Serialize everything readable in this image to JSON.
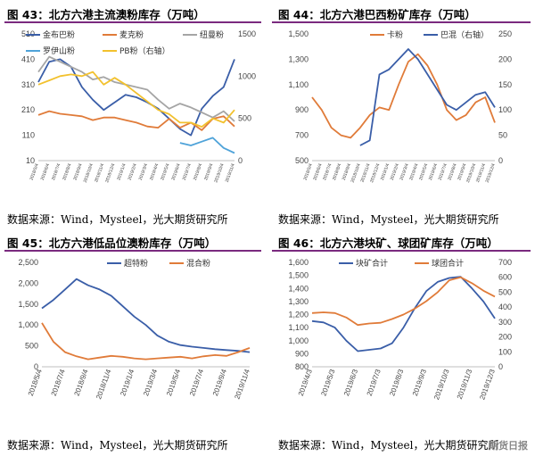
{
  "panels": [
    {
      "title": "图 43：北方六港主流澳粉库存（万吨）",
      "source": "数据来源：Wind，Mysteel，光大期货研究所"
    },
    {
      "title": "图 44：北方六港巴西粉矿库存（万吨）",
      "source": "数据来源：Wind，Mysteel，光大期货研究所"
    },
    {
      "title": "图 45：北方六港低品位澳粉库存（万吨）",
      "source": "数据来源：Wind，Mysteel，光大期货研究所"
    },
    {
      "title": "图 46：北方六港块矿、球团矿库存（万吨）",
      "source": "数据来源：Wind，Mysteel，光大期货研究所"
    }
  ],
  "watermark": "期货日报",
  "chart_data": [
    {
      "type": "line",
      "title": "北方六港主流澳粉库存（万吨）",
      "ylim": [
        10,
        510
      ],
      "yticks": [
        10,
        110,
        210,
        310,
        410,
        510
      ],
      "y2lim": [
        0,
        1500
      ],
      "y2ticks": [
        0,
        500,
        1000,
        1500
      ],
      "xticks": [
        "2018/5/4",
        "2018/6/4",
        "2018/7/4",
        "2018/8/4",
        "2018/9/4",
        "2018/10/4",
        "2018/11/4",
        "2018/12/4",
        "2019/1/4",
        "2019/2/4",
        "2019/3/4",
        "2019/4/4",
        "2019/5/4",
        "2019/6/4",
        "2019/7/4",
        "2019/8/4",
        "2019/9/4",
        "2019/10/4",
        "2019/11/4"
      ],
      "n": 19,
      "series": [
        {
          "name": "金布巴粉",
          "color": "#3a5ea8",
          "axis": "left",
          "values": [
            320,
            400,
            410,
            380,
            300,
            250,
            210,
            240,
            270,
            260,
            240,
            215,
            175,
            135,
            110,
            215,
            265,
            300,
            410
          ]
        },
        {
          "name": "麦克粉",
          "color": "#e07b39",
          "axis": "left",
          "values": [
            190,
            205,
            195,
            190,
            185,
            170,
            180,
            180,
            170,
            160,
            145,
            140,
            175,
            140,
            160,
            130,
            175,
            185,
            145
          ]
        },
        {
          "name": "纽曼粉",
          "color": "#a5a5a5",
          "axis": "left",
          "values": [
            360,
            420,
            400,
            380,
            360,
            330,
            340,
            320,
            310,
            300,
            290,
            250,
            215,
            235,
            220,
            200,
            180,
            205,
            165
          ]
        },
        {
          "name": "罗伊山粉",
          "color": "#4fa3d9",
          "axis": "left",
          "values": [
            null,
            null,
            null,
            null,
            null,
            null,
            null,
            null,
            null,
            null,
            null,
            null,
            null,
            80,
            70,
            85,
            100,
            60,
            40
          ]
        },
        {
          "name": "PB粉（右轴）",
          "color": "#f2c12e",
          "axis": "right",
          "values": [
            900,
            950,
            1000,
            1020,
            1000,
            1050,
            900,
            980,
            900,
            800,
            700,
            600,
            550,
            450,
            450,
            400,
            500,
            450,
            600
          ]
        }
      ]
    },
    {
      "type": "line",
      "title": "北方六港巴西粉矿库存（万吨）",
      "ylim": [
        500,
        1500
      ],
      "yticks": [
        500,
        700,
        900,
        1100,
        1300,
        1500
      ],
      "y2lim": [
        0,
        250
      ],
      "y2ticks": [
        0,
        50,
        100,
        150,
        200,
        250
      ],
      "xticks": [
        "2018/5/4",
        "2018/6/4",
        "2018/7/4",
        "2018/8/4",
        "2018/9/4",
        "2018/10/4",
        "2018/11/4",
        "2018/12/4",
        "2019/1/4",
        "2019/2/4",
        "2019/3/4",
        "2019/4/4",
        "2019/5/4",
        "2019/6/4",
        "2019/7/4",
        "2019/8/4",
        "2019/9/4",
        "2019/10/4",
        "2019/11/4",
        "2019/12/4"
      ],
      "n": 20,
      "series": [
        {
          "name": "卡粉",
          "color": "#e07b39",
          "axis": "left",
          "values": [
            1000,
            900,
            760,
            700,
            680,
            760,
            860,
            920,
            900,
            1100,
            1280,
            1340,
            1250,
            1100,
            900,
            820,
            860,
            960,
            1000,
            800
          ]
        },
        {
          "name": "巴混（右轴）",
          "color": "#3a5ea8",
          "axis": "right",
          "values": [
            null,
            null,
            null,
            null,
            null,
            30,
            40,
            170,
            180,
            200,
            220,
            200,
            170,
            140,
            110,
            100,
            115,
            130,
            135,
            105
          ]
        }
      ]
    },
    {
      "type": "line",
      "title": "北方六港低品位澳粉库存（万吨）",
      "ylim": [
        0,
        2500
      ],
      "yticks": [
        0,
        500,
        1000,
        1500,
        2000,
        2500
      ],
      "xticks": [
        "2018/5/4",
        "2018/7/4",
        "2018/9/4",
        "2018/11/4",
        "2019/1/4",
        "2019/3/4",
        "2019/5/4",
        "2019/7/4",
        "2019/9/4",
        "2019/11/4"
      ],
      "n": 19,
      "series": [
        {
          "name": "超特粉",
          "color": "#3a5ea8",
          "axis": "left",
          "values": [
            1400,
            1600,
            1850,
            2100,
            1950,
            1850,
            1700,
            1450,
            1200,
            1000,
            750,
            600,
            520,
            480,
            450,
            420,
            400,
            380,
            350
          ]
        },
        {
          "name": "混合粉",
          "color": "#e07b39",
          "axis": "left",
          "values": [
            1050,
            600,
            350,
            250,
            180,
            220,
            260,
            240,
            200,
            180,
            200,
            220,
            240,
            200,
            250,
            280,
            260,
            350,
            450
          ]
        }
      ]
    },
    {
      "type": "line",
      "title": "北方六港块矿、球团矿库存（万吨）",
      "ylim": [
        800,
        1600
      ],
      "yticks": [
        800,
        900,
        1000,
        1100,
        1200,
        1300,
        1400,
        1500,
        1600
      ],
      "y2lim": [
        0,
        700
      ],
      "y2ticks": [
        0,
        100,
        200,
        300,
        400,
        500,
        600,
        700
      ],
      "xticks": [
        "2019/4/3",
        "2019/5/3",
        "2019/6/3",
        "2019/7/3",
        "2019/8/3",
        "2019/9/3",
        "2019/10/3",
        "2019/11/3",
        "2019/12/3"
      ],
      "n": 17,
      "series": [
        {
          "name": "块矿合计",
          "color": "#3a5ea8",
          "axis": "left",
          "values": [
            1150,
            1140,
            1100,
            1000,
            920,
            930,
            940,
            980,
            1100,
            1250,
            1380,
            1450,
            1480,
            1490,
            1400,
            1300,
            1170
          ]
        },
        {
          "name": "球团合计",
          "color": "#e07b39",
          "axis": "right",
          "values": [
            360,
            365,
            360,
            330,
            280,
            290,
            295,
            320,
            350,
            390,
            440,
            500,
            580,
            600,
            560,
            510,
            470
          ]
        }
      ]
    }
  ]
}
